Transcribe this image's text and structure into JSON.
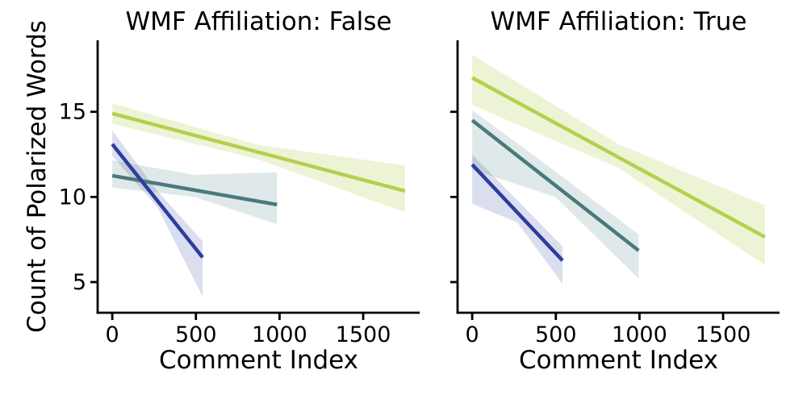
{
  "figure": {
    "background": "#ffffff",
    "text_color": "#000000",
    "axis_color": "#000000"
  },
  "chart_data": {
    "type": "line",
    "description": "Faceted linear regression fits with confidence bands",
    "ylabel": "Count of Polarized Words",
    "xlabel": "Comment Index",
    "xlim": [
      -87.5,
      1837.5
    ],
    "ylim": [
      3.2,
      19.2
    ],
    "xticks": [
      0,
      500,
      1000,
      1500
    ],
    "xticklabels": [
      "0",
      "500",
      "1000",
      "1500"
    ],
    "yticks": [
      5,
      10,
      15
    ],
    "yticklabels": [
      "5",
      "10",
      "15"
    ],
    "grid": false,
    "legend": "none",
    "panels": [
      {
        "title": "WMF Affiliation: False",
        "xlabel": "Comment Index",
        "series": [
          {
            "name": "green",
            "color": "#b5cf4e",
            "band_opacity": 0.24,
            "x": [
              0,
              1750
            ],
            "y": [
              14.9,
              10.35
            ],
            "ci": {
              "x": [
                0,
                875,
                1750
              ],
              "top": [
                15.5,
                13.05,
                11.85
              ],
              "bottom": [
                14.3,
                12.2,
                9.1
              ]
            }
          },
          {
            "name": "teal",
            "color": "#497a7c",
            "band_opacity": 0.17,
            "x": [
              0,
              985
            ],
            "y": [
              11.25,
              9.55
            ],
            "ci": {
              "x": [
                0,
                490,
                985
              ],
              "top": [
                12.15,
                11.3,
                11.45
              ],
              "bottom": [
                10.55,
                10.0,
                8.4
              ]
            }
          },
          {
            "name": "blue",
            "color": "#2b3d9d",
            "band_opacity": 0.17,
            "x": [
              0,
              540
            ],
            "y": [
              13.1,
              6.45
            ],
            "ci": {
              "x": [
                0,
                270,
                540
              ],
              "top": [
                13.9,
                10.35,
                7.4
              ],
              "bottom": [
                12.4,
                9.4,
                4.15
              ]
            }
          }
        ]
      },
      {
        "title": "WMF Affiliation: True",
        "xlabel": "Comment Index",
        "series": [
          {
            "name": "green",
            "color": "#b5cf4e",
            "band_opacity": 0.24,
            "x": [
              0,
              1750
            ],
            "y": [
              17.0,
              7.65
            ],
            "ci": {
              "x": [
                0,
                875,
                1750
              ],
              "top": [
                18.35,
                13.1,
                9.5
              ],
              "bottom": [
                15.4,
                11.7,
                6.0
              ]
            }
          },
          {
            "name": "teal",
            "color": "#497a7c",
            "band_opacity": 0.17,
            "x": [
              0,
              995
            ],
            "y": [
              14.5,
              6.85
            ],
            "ci": {
              "x": [
                0,
                497,
                995
              ],
              "top": [
                15.1,
                11.5,
                7.8
              ],
              "bottom": [
                11.6,
                10.0,
                5.2
              ]
            }
          },
          {
            "name": "blue",
            "color": "#2b3d9d",
            "band_opacity": 0.17,
            "x": [
              0,
              540
            ],
            "y": [
              11.9,
              6.27
            ],
            "ci": {
              "x": [
                0,
                270,
                540
              ],
              "top": [
                12.5,
                9.8,
                7.1
              ],
              "bottom": [
                9.6,
                8.5,
                4.9
              ]
            }
          }
        ]
      }
    ]
  }
}
